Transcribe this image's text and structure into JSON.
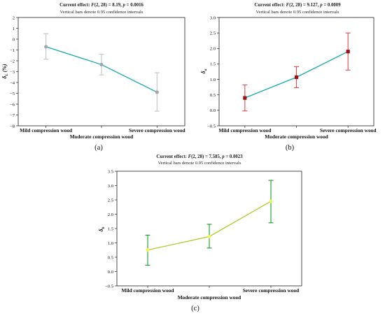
{
  "chart_data": [
    {
      "type": "line",
      "panel_label": "(a)",
      "header": {
        "line1_prefix": "Current effect: ",
        "line1_f": "F",
        "line1_stat": "(2, 28) = 8.19, ",
        "line1_p": "p",
        "line1_pval": " = 0.0016",
        "line2": "Vertical bars denote 0.95 confidence intervals"
      },
      "ylabel": "δL (%)",
      "ylabel_main": "δ",
      "ylabel_sub": "L",
      "ylabel_suffix": " (%)",
      "ylim": [
        -8,
        2
      ],
      "yticks": [
        "2",
        "1",
        "0",
        "−1",
        "−2",
        "−3",
        "−4",
        "−5",
        "−6",
        "−7",
        "−8"
      ],
      "categories": [
        "Mild compression wood",
        "Moderate compression wood",
        "Severe compression wood"
      ],
      "series": [
        {
          "values": [
            -0.7,
            -2.35,
            -4.9
          ],
          "ci_low": [
            -1.85,
            -3.3,
            -6.65
          ],
          "ci_high": [
            0.5,
            -1.4,
            -3.1
          ]
        }
      ],
      "colors": {
        "line": "#17a8a8",
        "marker": "#9ba6ad",
        "errorbar": "#c2c2c2"
      },
      "grid": false
    },
    {
      "type": "line",
      "panel_label": "(b)",
      "header": {
        "line1_prefix": "Current effect: ",
        "line1_f": "F",
        "line1_stat": "(2, 28) = 9.127, ",
        "line1_p": "p",
        "line1_pval": " = 0.0009",
        "line2": "Vertical bars denote 0.95 confidence intervals"
      },
      "ylabel": "δa",
      "ylabel_main": "δ",
      "ylabel_sub": "a",
      "ylabel_suffix": "",
      "ylim": [
        -0.5,
        3.0
      ],
      "yticks": [
        "3.0",
        "2.5",
        "2.0",
        "1.5",
        "1.0",
        "0.5",
        "0.0",
        "−0.5"
      ],
      "categories": [
        "Mild compression wood",
        "Moderate compression wood",
        "Severe compression wood"
      ],
      "series": [
        {
          "values": [
            0.4,
            1.07,
            1.9
          ],
          "ci_low": [
            -0.02,
            0.73,
            1.3
          ],
          "ci_high": [
            0.82,
            1.41,
            2.5
          ]
        }
      ],
      "colors": {
        "line": "#17a8a8",
        "marker": "#a01010",
        "errorbar": "#e84848"
      },
      "grid": false
    },
    {
      "type": "line",
      "panel_label": "(c)",
      "header": {
        "line1_prefix": "Current effect: ",
        "line1_f": "F",
        "line1_stat": "(2, 28) = 7.585, ",
        "line1_p": "p",
        "line1_pval": " = 0.0023",
        "line2": "Vertical bars denote 0.95 confidence intervals"
      },
      "ylabel": "δb",
      "ylabel_main": "δ",
      "ylabel_sub": "b",
      "ylabel_suffix": "",
      "ylim": [
        -0.5,
        3.5
      ],
      "yticks": [
        "3.5",
        "3.0",
        "2.5",
        "2.0",
        "1.5",
        "1.0",
        "0.5",
        "0.0",
        "−0.5"
      ],
      "categories": [
        "Mild compression wood",
        "Moderate compression wood",
        "Severe compression wood"
      ],
      "series": [
        {
          "values": [
            0.75,
            1.22,
            2.45
          ],
          "ci_low": [
            0.22,
            0.82,
            1.7
          ],
          "ci_high": [
            1.27,
            1.65,
            3.18
          ]
        }
      ],
      "colors": {
        "line": "#b5c92e",
        "marker": "#f2f25a",
        "errorbar": "#1a9a2a"
      },
      "grid": false
    }
  ]
}
